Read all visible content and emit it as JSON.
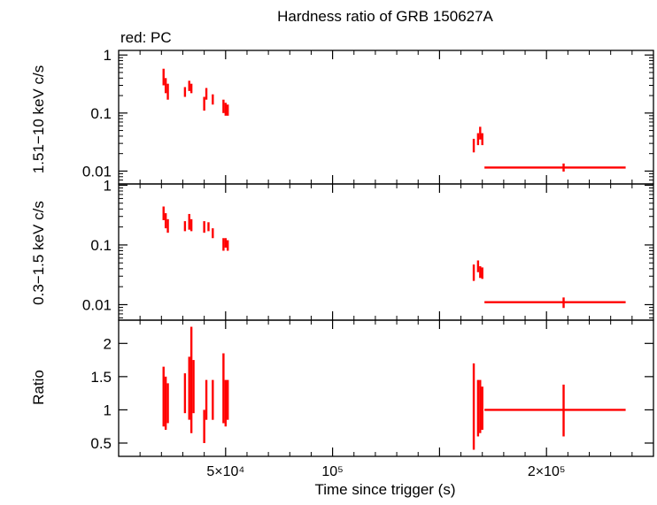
{
  "title": "Hardness ratio of GRB 150627A",
  "legend_note": "red: PC",
  "xlabel": "Time since trigger (s)",
  "colors": {
    "data": "#ff0000",
    "axes": "#000000"
  },
  "chart_data": [
    {
      "type": "scatter",
      "panel": "top",
      "ylabel": "1.51−10 keV c/s",
      "yscale": "log",
      "ylim": [
        0.006,
        1.2
      ],
      "xlim": [
        0,
        250000
      ],
      "yticks": [
        {
          "v": 1,
          "label": "1"
        },
        {
          "v": 0.1,
          "label": "0.1"
        },
        {
          "v": 0.01,
          "label": "0.01"
        }
      ],
      "points": [
        {
          "x": 21000,
          "y": 0.42,
          "ylo": 0.3,
          "yhi": 0.58
        },
        {
          "x": 22000,
          "y": 0.3,
          "ylo": 0.22,
          "yhi": 0.4
        },
        {
          "x": 23000,
          "y": 0.24,
          "ylo": 0.17,
          "yhi": 0.32
        },
        {
          "x": 31000,
          "y": 0.23,
          "ylo": 0.19,
          "yhi": 0.28
        },
        {
          "x": 33000,
          "y": 0.3,
          "ylo": 0.24,
          "yhi": 0.36
        },
        {
          "x": 34000,
          "y": 0.27,
          "ylo": 0.22,
          "yhi": 0.32
        },
        {
          "x": 40000,
          "y": 0.14,
          "ylo": 0.11,
          "yhi": 0.19
        },
        {
          "x": 41000,
          "y": 0.22,
          "ylo": 0.17,
          "yhi": 0.27
        },
        {
          "x": 44000,
          "y": 0.17,
          "ylo": 0.14,
          "yhi": 0.21
        },
        {
          "x": 49000,
          "y": 0.13,
          "ylo": 0.1,
          "yhi": 0.17
        },
        {
          "x": 50000,
          "y": 0.12,
          "ylo": 0.09,
          "yhi": 0.15
        },
        {
          "x": 51000,
          "y": 0.11,
          "ylo": 0.09,
          "yhi": 0.14
        },
        {
          "x": 166000,
          "y": 0.028,
          "ylo": 0.021,
          "yhi": 0.036
        },
        {
          "x": 168000,
          "y": 0.036,
          "ylo": 0.028,
          "yhi": 0.045
        },
        {
          "x": 169000,
          "y": 0.046,
          "ylo": 0.035,
          "yhi": 0.058
        },
        {
          "x": 170000,
          "y": 0.036,
          "ylo": 0.028,
          "yhi": 0.045
        },
        {
          "x": 208000,
          "xlo": 171000,
          "xhi": 237000,
          "y": 0.0115,
          "ylo": 0.0098,
          "yhi": 0.0135
        }
      ]
    },
    {
      "type": "scatter",
      "panel": "middle",
      "ylabel": "0.3−1.5 keV c/s",
      "yscale": "log",
      "ylim": [
        0.0055,
        1.05
      ],
      "xlim": [
        0,
        250000
      ],
      "yticks": [
        {
          "v": 1,
          "label": "1"
        },
        {
          "v": 0.1,
          "label": "0.1"
        },
        {
          "v": 0.01,
          "label": "0.01"
        }
      ],
      "points": [
        {
          "x": 21000,
          "y": 0.35,
          "ylo": 0.26,
          "yhi": 0.44
        },
        {
          "x": 22000,
          "y": 0.26,
          "ylo": 0.19,
          "yhi": 0.34
        },
        {
          "x": 23000,
          "y": 0.21,
          "ylo": 0.16,
          "yhi": 0.27
        },
        {
          "x": 31000,
          "y": 0.21,
          "ylo": 0.17,
          "yhi": 0.25
        },
        {
          "x": 33000,
          "y": 0.26,
          "ylo": 0.18,
          "yhi": 0.33
        },
        {
          "x": 34000,
          "y": 0.22,
          "ylo": 0.17,
          "yhi": 0.27
        },
        {
          "x": 40000,
          "y": 0.2,
          "ylo": 0.16,
          "yhi": 0.25
        },
        {
          "x": 42000,
          "y": 0.2,
          "ylo": 0.17,
          "yhi": 0.24
        },
        {
          "x": 44000,
          "y": 0.16,
          "ylo": 0.13,
          "yhi": 0.19
        },
        {
          "x": 49000,
          "y": 0.1,
          "ylo": 0.08,
          "yhi": 0.13
        },
        {
          "x": 50000,
          "y": 0.11,
          "ylo": 0.09,
          "yhi": 0.13
        },
        {
          "x": 51000,
          "y": 0.1,
          "ylo": 0.08,
          "yhi": 0.12
        },
        {
          "x": 166000,
          "y": 0.035,
          "ylo": 0.025,
          "yhi": 0.047
        },
        {
          "x": 168000,
          "y": 0.045,
          "ylo": 0.035,
          "yhi": 0.055
        },
        {
          "x": 169000,
          "y": 0.036,
          "ylo": 0.028,
          "yhi": 0.044
        },
        {
          "x": 170000,
          "y": 0.034,
          "ylo": 0.027,
          "yhi": 0.042
        },
        {
          "x": 208000,
          "xlo": 171000,
          "xhi": 237000,
          "y": 0.011,
          "ylo": 0.0088,
          "yhi": 0.0132
        }
      ]
    },
    {
      "type": "scatter",
      "panel": "bottom",
      "ylabel": "Ratio",
      "yscale": "linear",
      "ylim": [
        0.3,
        2.35
      ],
      "xlim": [
        0,
        250000
      ],
      "yticks": [
        {
          "v": 2,
          "label": "2"
        },
        {
          "v": 1.5,
          "label": "1.5"
        },
        {
          "v": 1,
          "label": "1"
        },
        {
          "v": 0.5,
          "label": "0.5"
        }
      ],
      "xticks": [
        {
          "v": 50000,
          "label": "5×10⁴"
        },
        {
          "v": 100000,
          "label": "10⁵"
        },
        {
          "v": 150000,
          "label": ""
        },
        {
          "v": 200000,
          "label": "2×10⁵"
        }
      ],
      "points": [
        {
          "x": 21000,
          "y": 1.2,
          "ylo": 0.75,
          "yhi": 1.65
        },
        {
          "x": 22000,
          "y": 1.1,
          "ylo": 0.7,
          "yhi": 1.5
        },
        {
          "x": 23000,
          "y": 1.1,
          "ylo": 0.8,
          "yhi": 1.4
        },
        {
          "x": 31000,
          "y": 1.25,
          "ylo": 0.95,
          "yhi": 1.55
        },
        {
          "x": 33000,
          "y": 1.3,
          "ylo": 0.85,
          "yhi": 1.8
        },
        {
          "x": 34000,
          "y": 1.45,
          "ylo": 0.65,
          "yhi": 2.25
        },
        {
          "x": 35000,
          "y": 1.35,
          "ylo": 0.95,
          "yhi": 1.75
        },
        {
          "x": 40000,
          "y": 0.75,
          "ylo": 0.5,
          "yhi": 1.0
        },
        {
          "x": 41000,
          "y": 1.15,
          "ylo": 0.85,
          "yhi": 1.45
        },
        {
          "x": 44000,
          "y": 1.15,
          "ylo": 0.85,
          "yhi": 1.45
        },
        {
          "x": 49000,
          "y": 1.3,
          "ylo": 0.8,
          "yhi": 1.85
        },
        {
          "x": 50000,
          "y": 1.1,
          "ylo": 0.75,
          "yhi": 1.45
        },
        {
          "x": 51000,
          "y": 1.15,
          "ylo": 0.85,
          "yhi": 1.45
        },
        {
          "x": 166000,
          "y": 0.9,
          "ylo": 0.4,
          "yhi": 1.7
        },
        {
          "x": 168000,
          "y": 1.05,
          "ylo": 0.6,
          "yhi": 1.45
        },
        {
          "x": 169000,
          "y": 1.05,
          "ylo": 0.65,
          "yhi": 1.45
        },
        {
          "x": 170000,
          "y": 1.0,
          "ylo": 0.7,
          "yhi": 1.35
        },
        {
          "x": 208000,
          "xlo": 171000,
          "xhi": 237000,
          "y": 1.0,
          "ylo": 0.6,
          "yhi": 1.38
        }
      ]
    }
  ]
}
